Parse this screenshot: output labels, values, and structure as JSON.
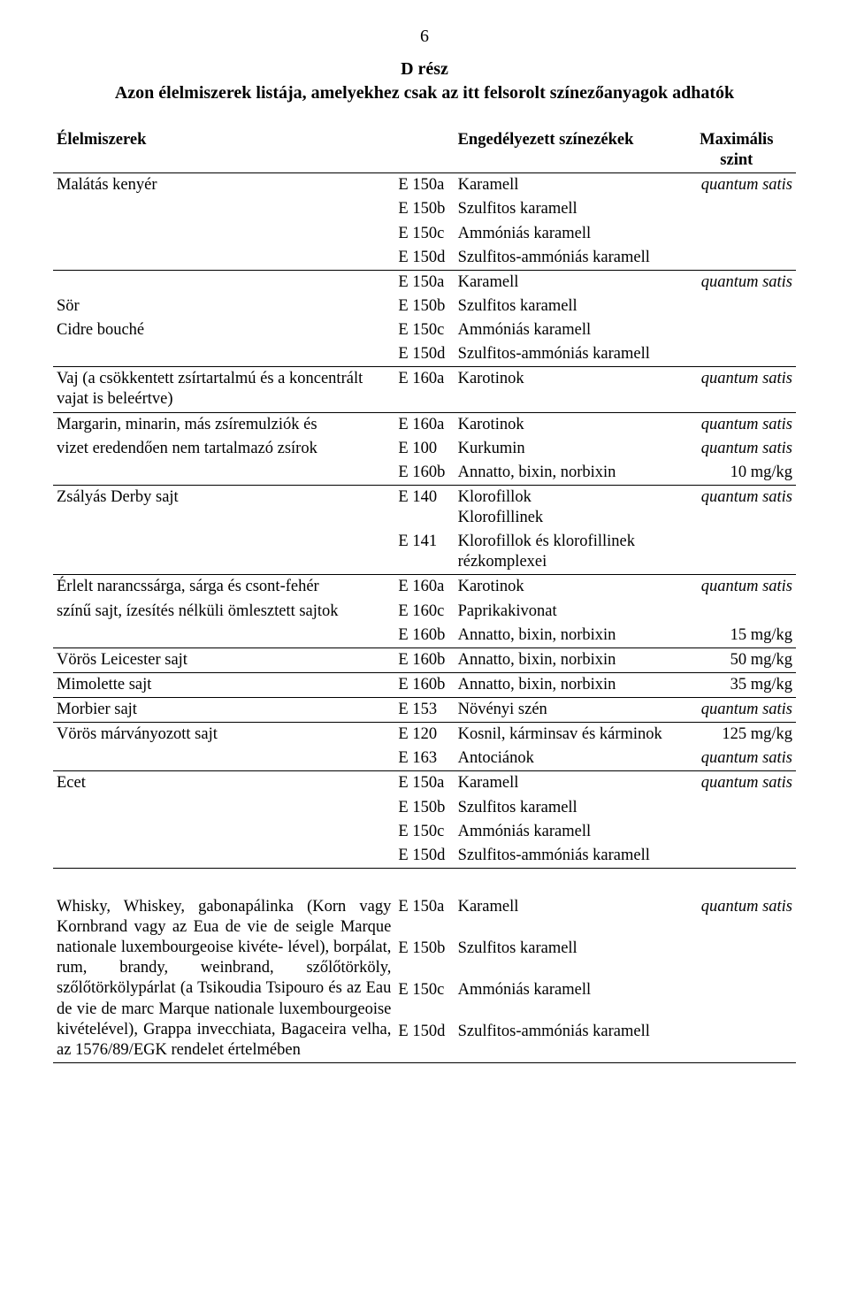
{
  "page_number": "6",
  "heading": "D rész",
  "subheading": "Azon élelmiszerek listája, amelyekhez csak az itt felsorolt színezőanyagok adhatók",
  "header": {
    "food": "Élelmiszerek",
    "approved": "Engedélyezett színezékek",
    "max_top": "Maximális",
    "max_bottom": "szint"
  },
  "qs": "quantum satis",
  "foods": {
    "malatas": "Malátás kenyér",
    "sor": "Sör",
    "cidre": "Cidre bouché",
    "vaj": "Vaj (a csökkentett zsírtartalmú és a koncentrált vajat is beleértve)",
    "margarin_l1": "Margarin, minarin, más zsíremulziók és",
    "margarin_l2": "vizet eredendően nem tartalmazó zsírok",
    "zsalyas": "Zsályás Derby sajt",
    "erlelt_l1": "Érlelt narancssárga, sárga és csont-fehér",
    "erlelt_l2": "színű sajt, ízesítés nélküli ömlesztett sajtok",
    "voros_leicester": "Vörös Leicester sajt",
    "mimolette": "Mimolette sajt",
    "morbier": "Morbier sajt",
    "voros_marvany": "Vörös márványozott sajt",
    "ecet": "Ecet",
    "whisky": "Whisky, Whiskey, gabonapálinka (Korn vagy Kornbrand vagy az Eua de vie de seigle Marque nationale luxembourgeoise kivéte- lével), borpálat, rum, brandy, weinbrand, szőlőtörköly, szőlőtörkölypárlat (a Tsikoudia Tsipouro és az Eau de vie de marc Marque nationale luxembourgeoise kivételével), Grappa invecchiata, Bagaceira velha, az 1576/89/EGK rendelet értelmében"
  },
  "codes": {
    "e150a": "E 150a",
    "e150b": "E 150b",
    "e150c": "E 150c",
    "e150d": "E 150d",
    "e160a": "E 160a",
    "e100": "E 100",
    "e160b": "E 160b",
    "e140": "E 140",
    "e141": "E 141",
    "e160c": "E 160c",
    "e153": "E 153",
    "e120": "E 120",
    "e163": "E 163"
  },
  "names": {
    "karamell": "Karamell",
    "szulfitos": "Szulfitos karamell",
    "ammonias": "Ammóniás karamell",
    "szulf_amm": "Szulfitos-ammóniás karamell",
    "karotinok": "Karotinok",
    "kurkumin": "Kurkumin",
    "annatto": "Annatto, bixin, norbixin",
    "klor1": "Klorofillok",
    "klor2": "Klorofillinek",
    "klor_rez1": "Klorofillok és klorofillinek",
    "klor_rez2": "rézkomplexei",
    "paprika": "Paprikakivonat",
    "novenyiszen": "Növényi szén",
    "kosnil": "Kosnil, kárminsav és kárminok",
    "antocianok": "Antociánok"
  },
  "max": {
    "mg10": "10 mg/kg",
    "mg15": "15 mg/kg",
    "mg50": "50 mg/kg",
    "mg35": "35 mg/kg",
    "mg125": "125 mg/kg"
  }
}
